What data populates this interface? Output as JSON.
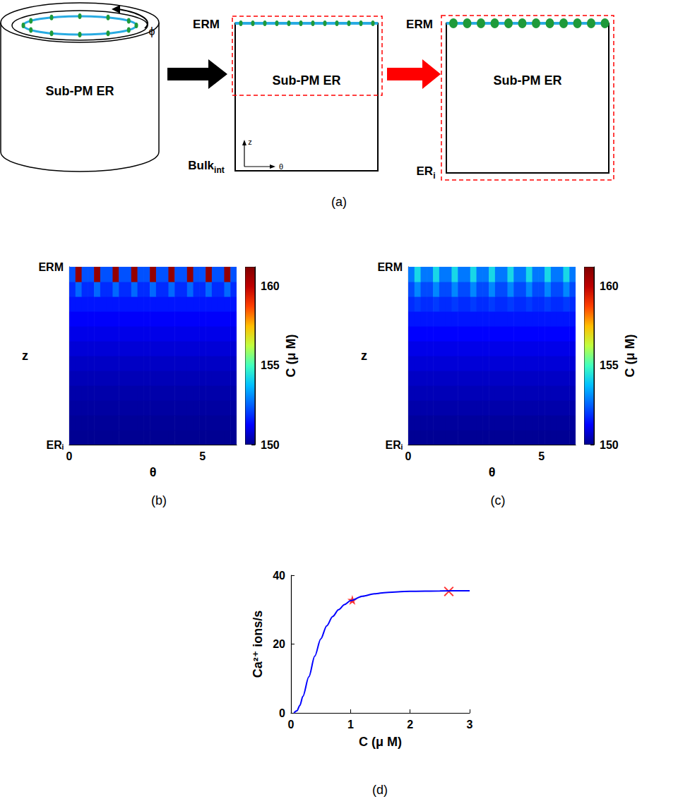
{
  "diagram": {
    "caption": "(a)",
    "cylinder": {
      "label": "Sub-PM ER",
      "angle_label": "ϕ"
    },
    "middle": {
      "top": "ERM",
      "center": "Sub-PM ER",
      "bottom": {
        "text": "Bulk",
        "subscript": "int"
      },
      "axes": {
        "vertical": "z",
        "horizontal": "θ"
      }
    },
    "right": {
      "top": "ERM",
      "center": "Sub-PM ER",
      "bottom": {
        "text": "ER",
        "subscript": "i"
      }
    }
  },
  "chart_data": [
    {
      "type": "heatmap",
      "caption": "(b)",
      "x_label": "θ",
      "y_label": "z",
      "xlim": [
        0,
        6.2832
      ],
      "xticks": [
        0,
        5
      ],
      "ylim": [
        0,
        1
      ],
      "yticks": [
        {
          "value": 0,
          "label": "ERᵢ"
        },
        {
          "value": 1,
          "label": "ERM"
        }
      ],
      "grid": false,
      "x": [
        0.1164,
        0.3491,
        0.5818,
        0.8145,
        1.0472,
        1.2799,
        1.5126,
        1.7453,
        1.978,
        2.2108,
        2.4435,
        2.6762,
        2.9089,
        3.1416,
        3.3743,
        3.607,
        3.8397,
        4.0724,
        4.3051,
        4.5379,
        4.7706,
        5.0033,
        5.236,
        5.4687,
        5.7014,
        5.9341,
        6.1668
      ],
      "y": [
        0.0417,
        0.125,
        0.2083,
        0.2917,
        0.375,
        0.4583,
        0.5417,
        0.625,
        0.7083,
        0.7917,
        0.875,
        0.9583
      ],
      "cells": [
        [
          150.03,
          150.03,
          150.03,
          150.03,
          150.03,
          150.03,
          150.03,
          150.03,
          150.03,
          150.03,
          150.03,
          150.03,
          150.03,
          150.03,
          150.03,
          150.03,
          150.03,
          150.03,
          150.03,
          150.03,
          150.03,
          150.03,
          150.03,
          150.03,
          150.03,
          150.03,
          150.03
        ],
        [
          150.1,
          150.1,
          150.1,
          150.1,
          150.1,
          150.1,
          150.1,
          150.1,
          150.1,
          150.1,
          150.1,
          150.1,
          150.1,
          150.1,
          150.1,
          150.1,
          150.1,
          150.1,
          150.1,
          150.1,
          150.1,
          150.1,
          150.1,
          150.1,
          150.1,
          150.1,
          150.1
        ],
        [
          150.2,
          150.2,
          150.2,
          150.2,
          150.2,
          150.2,
          150.2,
          150.2,
          150.2,
          150.2,
          150.2,
          150.2,
          150.2,
          150.2,
          150.2,
          150.2,
          150.2,
          150.2,
          150.2,
          150.2,
          150.2,
          150.2,
          150.2,
          150.2,
          150.2,
          150.2,
          150.2
        ],
        [
          150.3,
          150.3,
          150.3,
          150.3,
          150.3,
          150.3,
          150.3,
          150.3,
          150.3,
          150.3,
          150.3,
          150.3,
          150.3,
          150.3,
          150.3,
          150.3,
          150.3,
          150.3,
          150.3,
          150.3,
          150.3,
          150.3,
          150.3,
          150.3,
          150.3,
          150.3,
          150.3
        ],
        [
          150.45,
          150.45,
          150.45,
          150.45,
          150.45,
          150.45,
          150.45,
          150.45,
          150.45,
          150.45,
          150.45,
          150.45,
          150.45,
          150.45,
          150.45,
          150.45,
          150.45,
          150.45,
          150.45,
          150.45,
          150.45,
          150.45,
          150.45,
          150.45,
          150.45,
          150.45,
          150.45
        ],
        [
          150.6,
          150.6,
          150.6,
          150.6,
          150.6,
          150.6,
          150.6,
          150.6,
          150.6,
          150.6,
          150.6,
          150.6,
          150.6,
          150.6,
          150.6,
          150.6,
          150.6,
          150.6,
          150.6,
          150.6,
          150.6,
          150.6,
          150.6,
          150.6,
          150.6,
          150.6,
          150.6
        ],
        [
          150.8,
          150.8,
          150.8,
          150.8,
          150.8,
          150.8,
          150.8,
          150.8,
          150.8,
          150.8,
          150.8,
          150.8,
          150.8,
          150.8,
          150.8,
          150.8,
          150.8,
          150.8,
          150.8,
          150.8,
          150.8,
          150.8,
          150.8,
          150.8,
          150.8,
          150.8,
          150.8
        ],
        [
          151,
          151,
          151,
          151,
          151,
          151,
          151,
          151,
          151,
          151,
          151,
          151,
          151,
          151,
          151,
          151,
          151,
          151,
          151,
          151,
          151,
          151,
          151,
          151,
          151,
          151,
          151
        ],
        [
          151.2,
          151.2,
          151.2,
          151.2,
          151.2,
          151.2,
          151.2,
          151.2,
          151.2,
          151.2,
          151.2,
          151.2,
          151.2,
          151.2,
          151.2,
          151.2,
          151.2,
          151.2,
          151.2,
          151.2,
          151.2,
          151.2,
          151.2,
          151.2,
          151.2,
          151.2,
          151.2
        ],
        [
          151.5,
          151.5,
          151.5,
          151.5,
          151.5,
          151.5,
          151.5,
          151.5,
          151.5,
          151.5,
          151.5,
          151.5,
          151.5,
          151.5,
          151.5,
          151.5,
          151.5,
          151.5,
          151.5,
          151.5,
          151.5,
          151.5,
          151.5,
          151.5,
          151.5,
          151.5,
          151.5
        ],
        [
          151.8,
          152.6,
          151.8,
          151.8,
          152.6,
          151.8,
          151.8,
          152.6,
          151.8,
          151.8,
          152.6,
          151.8,
          151.8,
          152.6,
          151.8,
          151.8,
          152.6,
          151.8,
          151.8,
          152.6,
          151.8,
          151.8,
          152.6,
          151.8,
          151.8,
          152.6,
          151.8
        ],
        [
          152.3,
          160.8,
          152.3,
          152.3,
          160.8,
          152.3,
          152.3,
          160.8,
          152.3,
          152.3,
          160.8,
          152.3,
          152.3,
          160.8,
          152.3,
          152.3,
          160.8,
          152.3,
          152.3,
          160.8,
          152.3,
          152.3,
          160.8,
          152.3,
          152.3,
          160.8,
          152.3
        ]
      ],
      "colorbar": {
        "label": "C (μ M)",
        "range": [
          150,
          161.2
        ],
        "ticks": [
          150,
          155,
          160
        ]
      }
    },
    {
      "type": "heatmap",
      "caption": "(c)",
      "x_label": "θ",
      "y_label": "z",
      "xlim": [
        0,
        6.2832
      ],
      "xticks": [
        0,
        5
      ],
      "ylim": [
        0,
        1
      ],
      "yticks": [
        {
          "value": 0,
          "label": "ERᵢ"
        },
        {
          "value": 1,
          "label": "ERM"
        }
      ],
      "grid": false,
      "x": [
        0.1164,
        0.3491,
        0.5818,
        0.8145,
        1.0472,
        1.2799,
        1.5126,
        1.7453,
        1.978,
        2.2108,
        2.4435,
        2.6762,
        2.9089,
        3.1416,
        3.3743,
        3.607,
        3.8397,
        4.0724,
        4.3051,
        4.5379,
        4.7706,
        5.0033,
        5.236,
        5.4687,
        5.7014,
        5.9341,
        6.1668
      ],
      "y": [
        0.0417,
        0.125,
        0.2083,
        0.2917,
        0.375,
        0.4583,
        0.5417,
        0.625,
        0.7083,
        0.7917,
        0.875,
        0.9583
      ],
      "cells": [
        [
          150.05,
          150.05,
          150.05,
          150.05,
          150.05,
          150.05,
          150.05,
          150.05,
          150.05,
          150.05,
          150.05,
          150.05,
          150.05,
          150.05,
          150.05,
          150.05,
          150.05,
          150.05,
          150.05,
          150.05,
          150.05,
          150.05,
          150.05,
          150.05,
          150.05,
          150.05,
          150.05
        ],
        [
          150.15,
          150.15,
          150.15,
          150.15,
          150.15,
          150.15,
          150.15,
          150.15,
          150.15,
          150.15,
          150.15,
          150.15,
          150.15,
          150.15,
          150.15,
          150.15,
          150.15,
          150.15,
          150.15,
          150.15,
          150.15,
          150.15,
          150.15,
          150.15,
          150.15,
          150.15,
          150.15
        ],
        [
          150.3,
          150.3,
          150.3,
          150.3,
          150.3,
          150.3,
          150.3,
          150.3,
          150.3,
          150.3,
          150.3,
          150.3,
          150.3,
          150.3,
          150.3,
          150.3,
          150.3,
          150.3,
          150.3,
          150.3,
          150.3,
          150.3,
          150.3,
          150.3,
          150.3,
          150.3,
          150.3
        ],
        [
          150.45,
          150.45,
          150.45,
          150.45,
          150.45,
          150.45,
          150.45,
          150.45,
          150.45,
          150.45,
          150.45,
          150.45,
          150.45,
          150.45,
          150.45,
          150.45,
          150.45,
          150.45,
          150.45,
          150.45,
          150.45,
          150.45,
          150.45,
          150.45,
          150.45,
          150.45,
          150.45
        ],
        [
          150.6,
          150.6,
          150.6,
          150.6,
          150.6,
          150.6,
          150.6,
          150.6,
          150.6,
          150.6,
          150.6,
          150.6,
          150.6,
          150.6,
          150.6,
          150.6,
          150.6,
          150.6,
          150.6,
          150.6,
          150.6,
          150.6,
          150.6,
          150.6,
          150.6,
          150.6,
          150.6
        ],
        [
          150.8,
          150.8,
          150.8,
          150.8,
          150.8,
          150.8,
          150.8,
          150.8,
          150.8,
          150.8,
          150.8,
          150.8,
          150.8,
          150.8,
          150.8,
          150.8,
          150.8,
          150.8,
          150.8,
          150.8,
          150.8,
          150.8,
          150.8,
          150.8,
          150.8,
          150.8,
          150.8
        ],
        [
          151,
          151,
          151,
          151,
          151,
          151,
          151,
          151,
          151,
          151,
          151,
          151,
          151,
          151,
          151,
          151,
          151,
          151,
          151,
          151,
          151,
          151,
          151,
          151,
          151,
          151,
          151
        ],
        [
          151.25,
          151.25,
          151.25,
          151.25,
          151.25,
          151.25,
          151.25,
          151.25,
          151.25,
          151.25,
          151.25,
          151.25,
          151.25,
          151.25,
          151.25,
          151.25,
          151.25,
          151.25,
          151.25,
          151.25,
          151.25,
          151.25,
          151.25,
          151.25,
          151.25,
          151.25,
          151.25
        ],
        [
          151.5,
          151.5,
          151.5,
          151.5,
          151.5,
          151.5,
          151.5,
          151.5,
          151.5,
          151.5,
          151.5,
          151.5,
          151.5,
          151.5,
          151.5,
          151.5,
          151.5,
          151.5,
          151.5,
          151.5,
          151.5,
          151.5,
          151.5,
          151.5,
          151.5,
          151.5,
          151.5
        ],
        [
          151.8,
          152,
          151.8,
          151.8,
          152,
          151.8,
          151.8,
          152,
          151.8,
          151.8,
          152,
          151.8,
          151.8,
          152,
          151.8,
          151.8,
          152,
          151.8,
          151.8,
          152,
          151.8,
          151.8,
          152,
          151.8,
          151.8,
          152,
          151.8
        ],
        [
          152.2,
          153,
          152.2,
          152.2,
          153,
          152.2,
          152.2,
          153,
          152.2,
          152.2,
          153,
          152.2,
          152.2,
          153,
          152.2,
          152.2,
          153,
          152.2,
          152.2,
          153,
          152.2,
          152.2,
          153,
          152.2,
          152.2,
          153,
          152.2
        ],
        [
          152.8,
          154.2,
          152.8,
          152.8,
          154.2,
          152.8,
          152.8,
          154.2,
          152.8,
          152.8,
          154.2,
          152.8,
          152.8,
          154.2,
          152.8,
          152.8,
          154.2,
          152.8,
          152.8,
          154.2,
          152.8,
          152.8,
          154.2,
          152.8,
          152.8,
          154.2,
          152.8
        ]
      ],
      "colorbar": {
        "label": "C (μ M)",
        "range": [
          150,
          161.2
        ],
        "ticks": [
          150,
          155,
          160
        ]
      }
    },
    {
      "type": "line",
      "caption": "(d)",
      "x_label": "C (μ M)",
      "y_label": "Ca²⁺ ions/s",
      "xlim": [
        0,
        3
      ],
      "xticks": [
        0,
        1,
        2,
        3
      ],
      "ylim": [
        0,
        40
      ],
      "yticks": [
        0,
        20,
        40
      ],
      "grid": false,
      "color": "#0000ff",
      "x": [
        0.05,
        0.1,
        0.15,
        0.2,
        0.3,
        0.4,
        0.5,
        0.6,
        0.7,
        0.8,
        0.9,
        1.0,
        1.2,
        1.4,
        1.6,
        1.8,
        2.0,
        2.5,
        3.0
      ],
      "values": [
        0,
        0.6,
        2.2,
        4.8,
        10.5,
        16.5,
        21.5,
        25.3,
        28,
        30,
        31.5,
        32.6,
        33.9,
        34.6,
        35,
        35.2,
        35.35,
        35.45,
        35.5
      ],
      "points": [
        {
          "x": 1.03,
          "y": 32.8,
          "marker": "star",
          "color": "#ff0000"
        },
        {
          "x": 2.65,
          "y": 35.3,
          "marker": "x",
          "color": "#ff0000"
        }
      ]
    }
  ]
}
